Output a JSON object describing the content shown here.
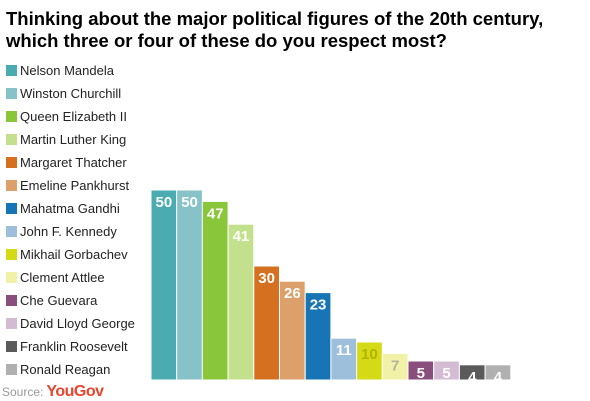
{
  "source": {
    "label": "Source:",
    "brand": "YouGov"
  },
  "chart_data": {
    "type": "bar",
    "title": "Thinking about the major political figures of the 20th century, which three or four of these do you respect most?",
    "categories": [
      "Nelson Mandela",
      "Winston Churchill",
      "Queen Elizabeth II",
      "Martin Luther King",
      "Margaret Thatcher",
      "Emeline Pankhurst",
      "Mahatma Gandhi",
      "John F. Kennedy",
      "Mikhail Gorbachev",
      "Clement Attlee",
      "Che Guevara",
      "David Lloyd George",
      "Franklin Roosevelt",
      "Ronald Reagan"
    ],
    "values": [
      50,
      50,
      47,
      41,
      30,
      26,
      23,
      11,
      10,
      7,
      5,
      5,
      4,
      4
    ],
    "colors": [
      "#4aacb0",
      "#86c2c8",
      "#8ac63a",
      "#c3e08c",
      "#d4701f",
      "#dea06a",
      "#1875b5",
      "#9ebfdc",
      "#d4db16",
      "#f1f1a8",
      "#8a4e7c",
      "#d4bbd4",
      "#5a5a5a",
      "#b0b0b0"
    ],
    "label_colors": [
      "#ffffff",
      "#ffffff",
      "#ffffff",
      "#ffffff",
      "#ffffff",
      "#ffffff",
      "#ffffff",
      "#ffffff",
      "#b3b300",
      "#b3b3a0",
      "#ffffff",
      "#ffffff",
      "#ffffff",
      "#ffffff"
    ],
    "xlabel": "",
    "ylabel": "",
    "ylim": [
      0,
      50
    ],
    "legend": "left",
    "grid": false
  }
}
